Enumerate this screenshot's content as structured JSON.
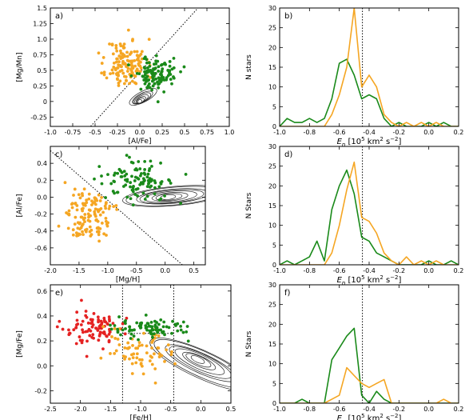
{
  "chart_data": [
    {
      "panel": "a)",
      "type": "scatter",
      "xlabel": "[Al/Fe]",
      "ylabel": "[Mg/Mn]",
      "xlim": [
        -1.0,
        1.0
      ],
      "ylim": [
        -0.4,
        1.5
      ],
      "xticks": [
        -1.0,
        -0.75,
        -0.5,
        -0.25,
        0.0,
        0.25,
        0.5,
        0.75,
        1.0
      ],
      "xtick_labels": [
        "-1.0",
        "-0.75",
        "-0.5",
        "-0.25",
        "0.0",
        "0.25",
        "0.5",
        "0.75",
        "1.0"
      ],
      "yticks": [
        -0.25,
        0.0,
        0.25,
        0.5,
        0.75,
        1.0,
        1.25,
        1.5
      ],
      "ytick_labels": [
        "-0.25",
        "0",
        "0.25",
        "0.5",
        "0.75",
        "1.0",
        "1.25",
        "1.5"
      ],
      "divider_line": [
        [
          -0.55,
          -0.4
        ],
        [
          0.65,
          1.5
        ]
      ],
      "contour_center": [
        0.0,
        0.0
      ],
      "contour_direction": [
        0.6,
        0.45
      ],
      "contour_radii": [
        0.04,
        0.07,
        0.1,
        0.13,
        0.17,
        0.21,
        0.26
      ],
      "contour_aspect": 0.38,
      "contour_scale": [
        0.42,
        0.3
      ],
      "series": [
        {
          "color": "#f5a623",
          "center": [
            -0.15,
            0.6
          ],
          "spread": [
            0.11,
            0.2
          ],
          "n": 140
        },
        {
          "color": "#1a8a1a",
          "center": [
            0.18,
            0.45
          ],
          "spread": [
            0.12,
            0.13
          ],
          "n": 110
        }
      ]
    },
    {
      "panel": "b)",
      "type": "line",
      "xlabel": "E_n [10^5 km^2 s^-2]",
      "ylabel": "N stars",
      "xlim": [
        -1.0,
        0.2
      ],
      "ylim": [
        0,
        30
      ],
      "xticks": [
        -1.0,
        -0.8,
        -0.6,
        -0.4,
        -0.2,
        0.0,
        0.2
      ],
      "xtick_labels": [
        "-1.0",
        "-0.8",
        "-0.6",
        "-0.4",
        "-0.2",
        "0.0",
        "0.2"
      ],
      "yticks": [
        0,
        5,
        10,
        15,
        20,
        25,
        30
      ],
      "ytick_labels": [
        "0",
        "5",
        "10",
        "15",
        "20",
        "25",
        "30"
      ],
      "vline": -0.445,
      "x": [
        -1.0,
        -0.95,
        -0.9,
        -0.85,
        -0.8,
        -0.75,
        -0.7,
        -0.65,
        -0.6,
        -0.55,
        -0.5,
        -0.45,
        -0.4,
        -0.35,
        -0.3,
        -0.25,
        -0.2,
        -0.15,
        -0.1,
        -0.05,
        0.0,
        0.05,
        0.1,
        0.15,
        0.2
      ],
      "series": [
        {
          "color": "#1a8a1a",
          "values": [
            0,
            2,
            1,
            1,
            2,
            1,
            2,
            7,
            16,
            17,
            13,
            7,
            8,
            7,
            2,
            0,
            1,
            0,
            0,
            0,
            1,
            0,
            1,
            0,
            0
          ]
        },
        {
          "color": "#f5a623",
          "values": [
            0,
            0,
            0,
            0,
            0,
            0,
            0,
            3,
            8,
            15,
            30,
            10,
            13,
            10,
            3,
            1,
            0,
            1,
            0,
            1,
            0,
            1,
            0,
            0,
            0
          ]
        }
      ]
    },
    {
      "panel": "c)",
      "type": "scatter",
      "xlabel": "[Mg/H]",
      "ylabel": "[Al/Fe]",
      "xlim": [
        -2.0,
        0.7
      ],
      "ylim": [
        -0.8,
        0.6
      ],
      "xticks": [
        -2.0,
        -1.5,
        -1.0,
        -0.5,
        0.0,
        0.5
      ],
      "xtick_labels": [
        "-2.0",
        "-1.5",
        "-1.0",
        "-0.5",
        "0.0",
        "0.5"
      ],
      "yticks": [
        -0.6,
        -0.4,
        -0.2,
        0.0,
        0.2,
        0.4
      ],
      "ytick_labels": [
        "-0.6",
        "-0.4",
        "-0.2",
        "0.0",
        "0.2",
        "0.4"
      ],
      "divider_line": [
        [
          -2.0,
          0.55
        ],
        [
          0.3,
          -0.8
        ]
      ],
      "contour_center": [
        0.05,
        0.0
      ],
      "contour_direction": [
        1.0,
        0.06
      ],
      "contour_radii": [
        0.06,
        0.1,
        0.15,
        0.2,
        0.25,
        0.3,
        0.36,
        0.42
      ],
      "contour_aspect": 0.16,
      "contour_scale": [
        1.0,
        1.0
      ],
      "series": [
        {
          "color": "#f5a623",
          "center": [
            -1.3,
            -0.23
          ],
          "spread": [
            0.2,
            0.14
          ],
          "n": 130
        },
        {
          "color": "#1a8a1a",
          "center": [
            -0.5,
            0.18
          ],
          "spread": [
            0.3,
            0.12
          ],
          "n": 110
        }
      ]
    },
    {
      "panel": "d)",
      "type": "line",
      "xlabel": "E_n [10^5 km^2 s^-2]",
      "ylabel": "N Stars",
      "xlim": [
        -1.0,
        0.2
      ],
      "ylim": [
        0,
        30
      ],
      "xticks": [
        -1.0,
        -0.8,
        -0.6,
        -0.4,
        -0.2,
        0.0,
        0.2
      ],
      "xtick_labels": [
        "-1.0",
        "-0.8",
        "-0.6",
        "-0.4",
        "-0.2",
        "0.0",
        "0.2"
      ],
      "yticks": [
        0,
        5,
        10,
        15,
        20,
        25,
        30
      ],
      "ytick_labels": [
        "0",
        "5",
        "10",
        "15",
        "20",
        "25",
        "30"
      ],
      "vline": -0.445,
      "x": [
        -1.0,
        -0.95,
        -0.9,
        -0.85,
        -0.8,
        -0.75,
        -0.7,
        -0.65,
        -0.6,
        -0.55,
        -0.5,
        -0.45,
        -0.4,
        -0.35,
        -0.3,
        -0.25,
        -0.2,
        -0.15,
        -0.1,
        -0.05,
        0.0,
        0.05,
        0.1,
        0.15,
        0.2
      ],
      "series": [
        {
          "color": "#1a8a1a",
          "values": [
            0,
            1,
            0,
            1,
            2,
            6,
            1,
            14,
            20,
            24,
            18,
            7,
            6,
            3,
            2,
            1,
            0,
            0,
            0,
            0,
            1,
            0,
            0,
            1,
            0
          ]
        },
        {
          "color": "#f5a623",
          "values": [
            0,
            0,
            0,
            0,
            0,
            0,
            0,
            3,
            10,
            19,
            26,
            12,
            11,
            8,
            3,
            1,
            0,
            2,
            0,
            1,
            0,
            1,
            0,
            0,
            0
          ]
        }
      ]
    },
    {
      "panel": "e)",
      "type": "scatter",
      "xlabel": "[Fe/H]",
      "ylabel": "[Mg/Fe]",
      "xlim": [
        -2.5,
        0.5
      ],
      "ylim": [
        -0.3,
        0.65
      ],
      "xticks": [
        -2.5,
        -2.0,
        -1.5,
        -1.0,
        -0.5,
        0.0,
        0.5
      ],
      "xtick_labels": [
        "-2.5",
        "-2.0",
        "-1.5",
        "-1.0",
        "-0.5",
        "0.0",
        "0.5"
      ],
      "yticks": [
        -0.2,
        0.0,
        0.2,
        0.4,
        0.6
      ],
      "ytick_labels": [
        "-0.2",
        "0.0",
        "0.2",
        "0.4",
        "0.6"
      ],
      "vlines": [
        -1.3,
        -0.45
      ],
      "box": [
        [
          -1.3,
          0.26
        ],
        [
          -0.45,
          0.26
        ]
      ],
      "contour_center": [
        -0.05,
        0.05
      ],
      "contour_direction": [
        1.0,
        -0.22
      ],
      "contour_radii": [
        0.05,
        0.09,
        0.13,
        0.18,
        0.23,
        0.28,
        0.34,
        0.4
      ],
      "contour_aspect": 0.22,
      "contour_scale": [
        1.0,
        1.0
      ],
      "series": [
        {
          "color": "#e52222",
          "center": [
            -1.75,
            0.3
          ],
          "spread": [
            0.25,
            0.07
          ],
          "n": 90
        },
        {
          "color": "#f5a623",
          "center": [
            -0.95,
            0.12
          ],
          "spread": [
            0.3,
            0.09
          ],
          "n": 70
        },
        {
          "color": "#1a8a1a",
          "center": [
            -0.9,
            0.3
          ],
          "spread": [
            0.3,
            0.04
          ],
          "n": 90
        }
      ]
    },
    {
      "panel": "f)",
      "type": "line",
      "xlabel": "E_n [10^5 km^2 s^-2]",
      "ylabel": "N Stars",
      "xlim": [
        -1.0,
        0.2
      ],
      "ylim": [
        0,
        30
      ],
      "xticks": [
        -1.0,
        -0.8,
        -0.6,
        -0.4,
        -0.2,
        0.0,
        0.2
      ],
      "xtick_labels": [
        "-1.0",
        "-0.8",
        "-0.6",
        "-0.4",
        "-0.2",
        "0.0",
        "0.2"
      ],
      "yticks": [
        0,
        5,
        10,
        15,
        20,
        25,
        30
      ],
      "ytick_labels": [
        "0",
        "5",
        "10",
        "15",
        "20",
        "25",
        "30"
      ],
      "vline": -0.445,
      "x": [
        -1.0,
        -0.95,
        -0.9,
        -0.85,
        -0.8,
        -0.75,
        -0.7,
        -0.65,
        -0.6,
        -0.55,
        -0.5,
        -0.45,
        -0.4,
        -0.35,
        -0.3,
        -0.25,
        -0.2,
        -0.15,
        -0.1,
        -0.05,
        0.0,
        0.05,
        0.1,
        0.15,
        0.2
      ],
      "series": [
        {
          "color": "#1a8a1a",
          "values": [
            0,
            0,
            0,
            1,
            0,
            0,
            0,
            11,
            14,
            17,
            19,
            2,
            0,
            3,
            1,
            0,
            0,
            0,
            0,
            0,
            0,
            0,
            0,
            0,
            0
          ]
        },
        {
          "color": "#f5a623",
          "values": [
            0,
            0,
            0,
            0,
            0,
            0,
            0,
            1,
            2,
            9,
            7,
            5,
            4,
            5,
            6,
            0,
            0,
            0,
            0,
            0,
            0,
            0,
            1,
            0,
            0
          ]
        }
      ]
    }
  ]
}
